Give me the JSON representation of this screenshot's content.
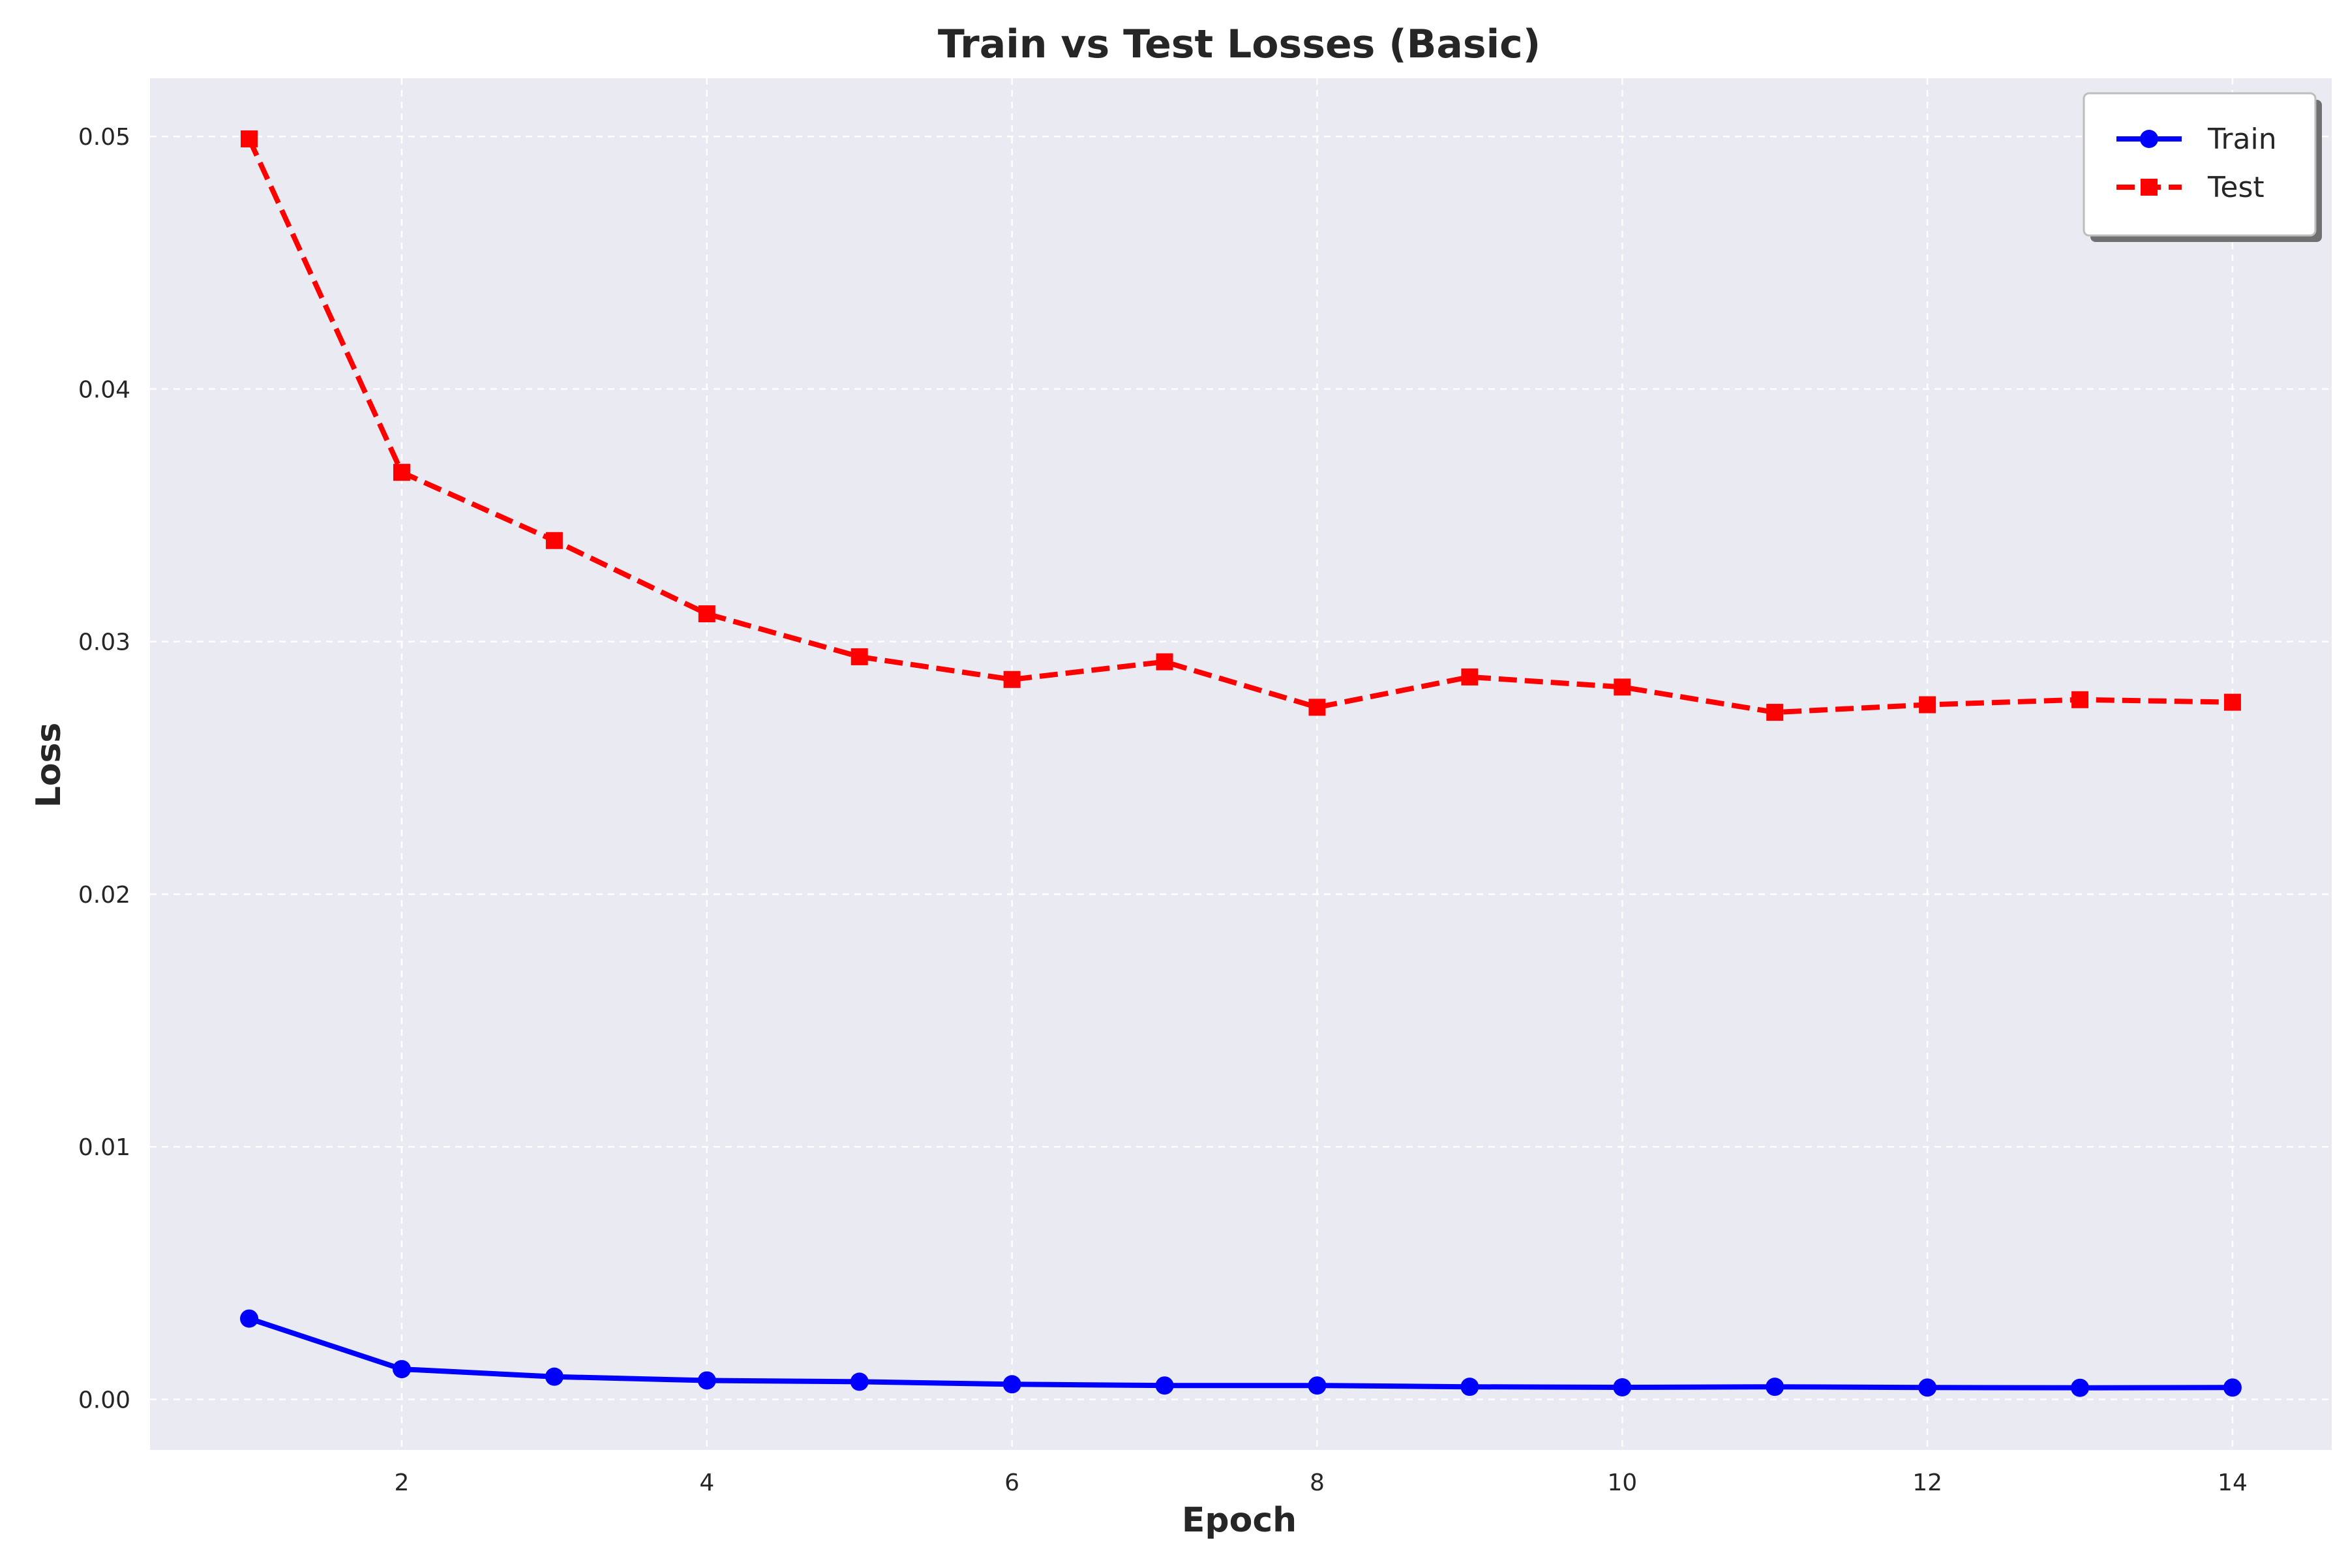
{
  "chart_data": {
    "type": "line",
    "title": "Train vs Test Losses (Basic)",
    "xlabel": "Epoch",
    "ylabel": "Loss",
    "x": [
      1,
      2,
      3,
      4,
      5,
      6,
      7,
      8,
      9,
      10,
      11,
      12,
      13,
      14
    ],
    "xlim": [
      0.35,
      14.65
    ],
    "ylim": [
      -0.002,
      0.0523
    ],
    "xticks": [
      2,
      4,
      6,
      8,
      10,
      12,
      14
    ],
    "xtick_labels": [
      "2",
      "4",
      "6",
      "8",
      "10",
      "12",
      "14"
    ],
    "yticks": [
      0.0,
      0.01,
      0.02,
      0.03,
      0.04,
      0.05
    ],
    "ytick_labels": [
      "0.00",
      "0.01",
      "0.02",
      "0.03",
      "0.04",
      "0.05"
    ],
    "grid": true,
    "legend_position": "top-right",
    "background_color": "#eaeaf2",
    "series": [
      {
        "name": "Train",
        "color": "#0000ff",
        "linestyle": "solid",
        "marker": "circle",
        "values": [
          0.0032,
          0.0012,
          0.0009,
          0.00075,
          0.0007,
          0.0006,
          0.00055,
          0.00055,
          0.0005,
          0.00048,
          0.0005,
          0.00047,
          0.00046,
          0.00047
        ]
      },
      {
        "name": "Test",
        "color": "#ff0000",
        "linestyle": "dashed",
        "marker": "square",
        "values": [
          0.0499,
          0.0367,
          0.034,
          0.0311,
          0.0294,
          0.0285,
          0.0292,
          0.0274,
          0.0286,
          0.0282,
          0.0272,
          0.0275,
          0.0277,
          0.0276
        ]
      }
    ]
  }
}
